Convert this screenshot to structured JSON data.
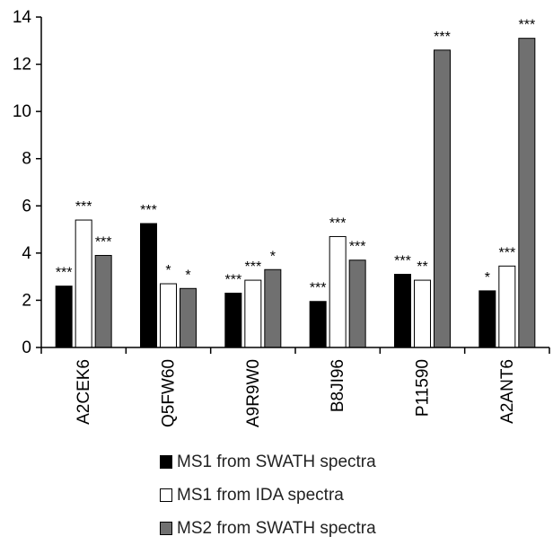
{
  "chart_data": {
    "type": "bar",
    "categories": [
      "A2CEK6",
      "Q5FW60",
      "A9R9W0",
      "B8JI96",
      "P11590",
      "A2ANT6"
    ],
    "ylim": [
      0,
      14
    ],
    "yticks": [
      "0",
      "2",
      "4",
      "6",
      "8",
      "10",
      "12",
      "14"
    ],
    "grid": false,
    "legend_position": "bottom",
    "series": [
      {
        "name": "MS1 from SWATH spectra",
        "color": "#000000",
        "values": [
          2.6,
          5.25,
          2.3,
          1.95,
          3.1,
          2.4
        ],
        "significance": [
          "***",
          "***",
          "***",
          "***",
          "***",
          "*"
        ]
      },
      {
        "name": "MS1 from IDA spectra",
        "color": "#ffffff",
        "values": [
          5.4,
          2.7,
          2.85,
          4.7,
          2.85,
          3.45
        ],
        "significance": [
          "***",
          "*",
          "***",
          "***",
          "**",
          "***"
        ]
      },
      {
        "name": "MS2 from SWATH spectra",
        "color": "#707070",
        "values": [
          3.9,
          2.5,
          3.3,
          3.7,
          12.6,
          13.1
        ],
        "significance": [
          "***",
          "*",
          "*",
          "***",
          "***",
          "***"
        ]
      }
    ]
  }
}
